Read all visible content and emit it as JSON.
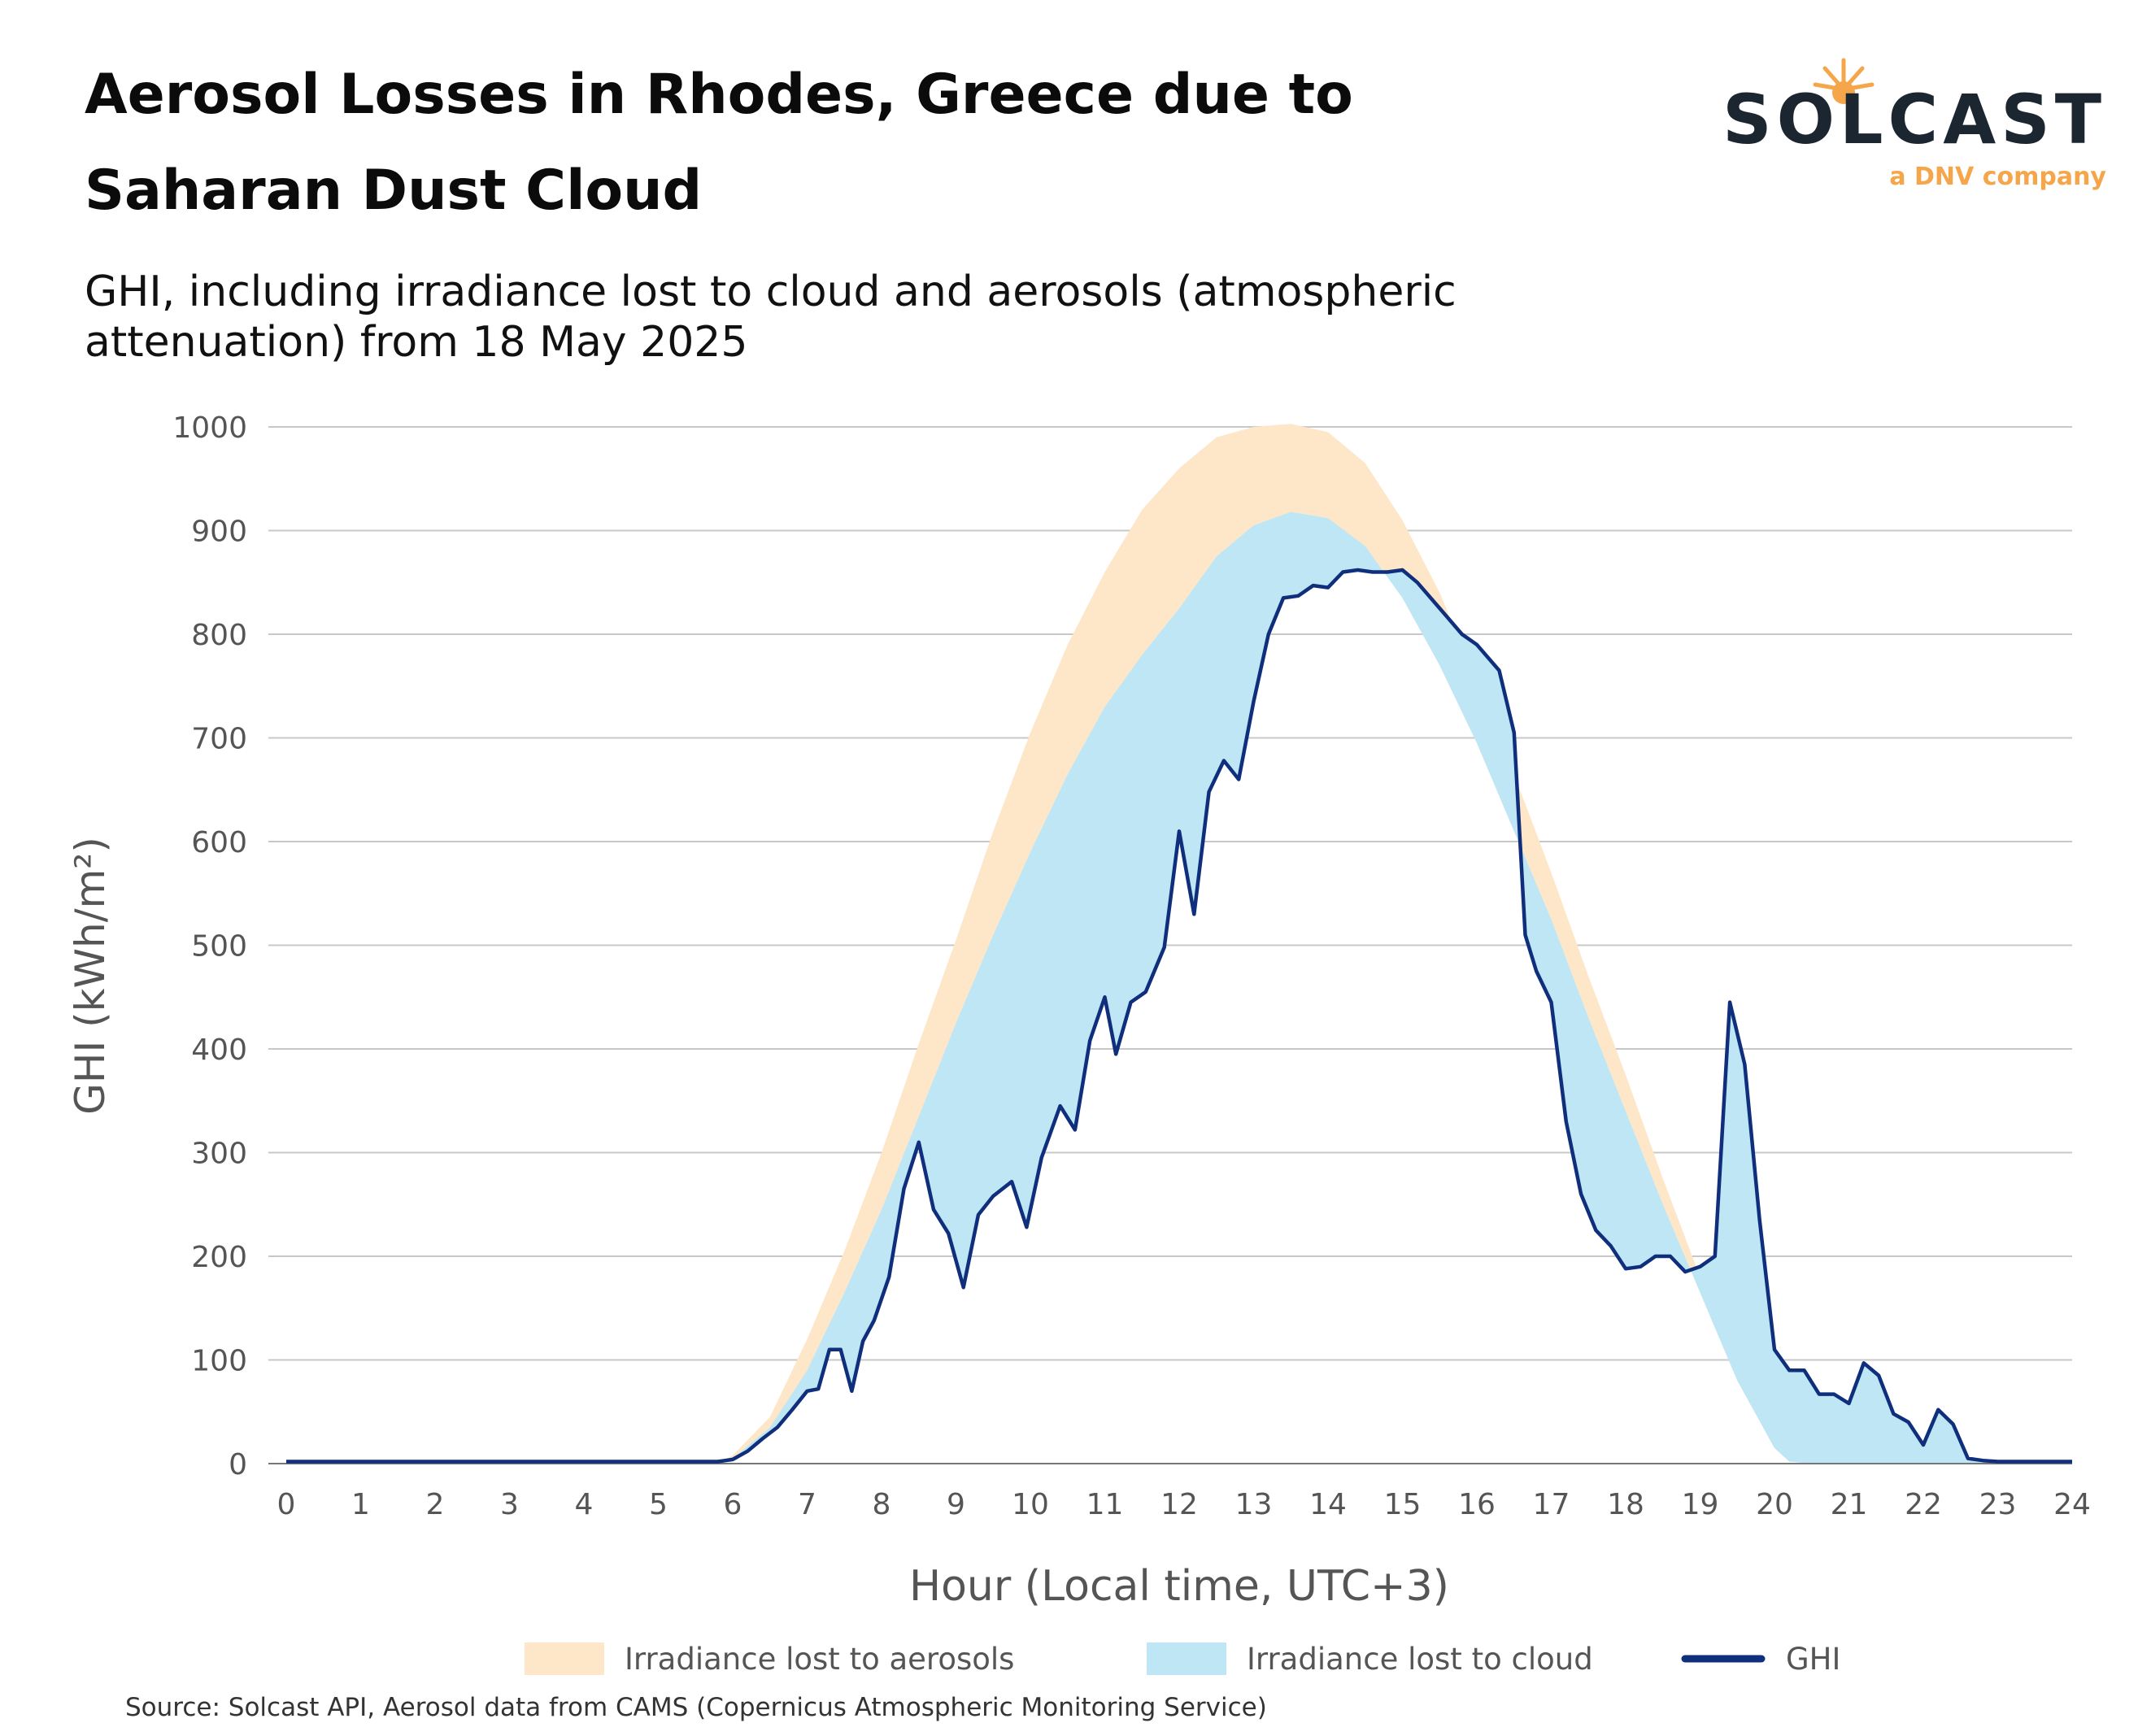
{
  "header": {
    "title": "Aerosol Losses in Rhodes, Greece due to Saharan Dust Cloud",
    "subtitle": "GHI, including irradiance lost to cloud and aerosols (atmospheric attenuation) from 18 May 2025"
  },
  "logo": {
    "wordmark": "SOLCAST",
    "tagline": "a DNV company",
    "sun_color": "#f5a54a",
    "text_color": "#1b2631"
  },
  "source": "Source: Solcast API, Aerosol data from CAMS (Copernicus Atmospheric Monitoring Service)",
  "colors": {
    "aerosol": "#fde7c8",
    "cloud": "#bfe6f5",
    "ghi": "#0f2f7d",
    "grid": "#c8c8c8",
    "text": "#555555"
  },
  "chart_data": {
    "type": "area",
    "xlabel": "Hour (Local time, UTC+3)",
    "ylabel": "GHI (kWh/m²)",
    "xlim": [
      0,
      24
    ],
    "ylim": [
      0,
      1000
    ],
    "x_ticks": [
      0,
      1,
      2,
      3,
      4,
      5,
      6,
      7,
      8,
      9,
      10,
      11,
      12,
      13,
      14,
      15,
      16,
      17,
      18,
      19,
      20,
      21,
      22,
      23,
      24
    ],
    "y_ticks": [
      0,
      100,
      200,
      300,
      400,
      500,
      600,
      700,
      800,
      900,
      1000
    ],
    "grid": "horizontal",
    "legend_position": "bottom",
    "legend": [
      "Irradiance lost to aerosols",
      "Irradiance lost to cloud",
      "GHI"
    ],
    "series": [
      {
        "name": "Irradiance lost to aerosols",
        "kind": "band-upper",
        "points": [
          [
            0,
            0
          ],
          [
            5.8,
            0
          ],
          [
            6,
            8
          ],
          [
            6.5,
            45
          ],
          [
            7,
            120
          ],
          [
            7.5,
            205
          ],
          [
            8,
            300
          ],
          [
            8.5,
            405
          ],
          [
            9,
            505
          ],
          [
            9.5,
            610
          ],
          [
            10,
            705
          ],
          [
            10.5,
            790
          ],
          [
            11,
            860
          ],
          [
            11.5,
            920
          ],
          [
            12,
            960
          ],
          [
            12.5,
            990
          ],
          [
            13,
            1000
          ],
          [
            13.5,
            1003
          ],
          [
            14,
            995
          ],
          [
            14.5,
            965
          ],
          [
            15,
            910
          ],
          [
            15.5,
            840
          ],
          [
            16,
            755
          ],
          [
            16.5,
            665
          ],
          [
            17,
            570
          ],
          [
            17.5,
            470
          ],
          [
            18,
            375
          ],
          [
            18.5,
            275
          ],
          [
            19,
            180
          ],
          [
            19.5,
            90
          ],
          [
            20,
            20
          ],
          [
            20.2,
            3
          ],
          [
            20.5,
            0
          ],
          [
            24,
            0
          ]
        ]
      },
      {
        "name": "Irradiance lost to cloud",
        "kind": "band-upper",
        "points": [
          [
            0,
            0
          ],
          [
            5.8,
            0
          ],
          [
            6,
            5
          ],
          [
            6.5,
            35
          ],
          [
            7,
            90
          ],
          [
            7.5,
            165
          ],
          [
            8,
            245
          ],
          [
            8.5,
            335
          ],
          [
            9,
            425
          ],
          [
            9.5,
            510
          ],
          [
            10,
            590
          ],
          [
            10.5,
            665
          ],
          [
            11,
            730
          ],
          [
            11.5,
            780
          ],
          [
            12,
            825
          ],
          [
            12.5,
            875
          ],
          [
            13,
            905
          ],
          [
            13.5,
            918
          ],
          [
            14,
            912
          ],
          [
            14.5,
            885
          ],
          [
            15,
            835
          ],
          [
            15.5,
            770
          ],
          [
            16,
            695
          ],
          [
            16.5,
            610
          ],
          [
            17,
            525
          ],
          [
            17.5,
            430
          ],
          [
            18,
            340
          ],
          [
            18.5,
            250
          ],
          [
            19,
            165
          ],
          [
            19.5,
            80
          ],
          [
            20,
            15
          ],
          [
            20.2,
            2
          ],
          [
            20.5,
            0
          ],
          [
            24,
            0
          ]
        ]
      },
      {
        "name": "GHI",
        "kind": "line",
        "points": [
          [
            0,
            2
          ],
          [
            5.8,
            2
          ],
          [
            6,
            4
          ],
          [
            6.2,
            12
          ],
          [
            6.4,
            24
          ],
          [
            6.6,
            35
          ],
          [
            6.8,
            52
          ],
          [
            7,
            70
          ],
          [
            7.15,
            72
          ],
          [
            7.3,
            110
          ],
          [
            7.45,
            110
          ],
          [
            7.6,
            70
          ],
          [
            7.75,
            118
          ],
          [
            7.9,
            138
          ],
          [
            8.1,
            180
          ],
          [
            8.3,
            265
          ],
          [
            8.5,
            310
          ],
          [
            8.7,
            245
          ],
          [
            8.9,
            222
          ],
          [
            9.1,
            170
          ],
          [
            9.3,
            240
          ],
          [
            9.5,
            258
          ],
          [
            9.75,
            272
          ],
          [
            9.95,
            228
          ],
          [
            10.15,
            295
          ],
          [
            10.4,
            345
          ],
          [
            10.6,
            322
          ],
          [
            10.8,
            408
          ],
          [
            11,
            450
          ],
          [
            11.15,
            395
          ],
          [
            11.35,
            445
          ],
          [
            11.55,
            455
          ],
          [
            11.8,
            498
          ],
          [
            12,
            610
          ],
          [
            12.2,
            530
          ],
          [
            12.4,
            648
          ],
          [
            12.6,
            678
          ],
          [
            12.8,
            660
          ],
          [
            13,
            735
          ],
          [
            13.2,
            800
          ],
          [
            13.4,
            835
          ],
          [
            13.6,
            837
          ],
          [
            13.8,
            847
          ],
          [
            14,
            845
          ],
          [
            14.2,
            860
          ],
          [
            14.4,
            862
          ],
          [
            14.6,
            860
          ],
          [
            14.8,
            860
          ],
          [
            15,
            862
          ],
          [
            15.2,
            850
          ],
          [
            15.5,
            825
          ],
          [
            15.8,
            800
          ],
          [
            16,
            790
          ],
          [
            16.3,
            765
          ],
          [
            16.5,
            705
          ],
          [
            16.65,
            510
          ],
          [
            16.8,
            475
          ],
          [
            17,
            445
          ],
          [
            17.2,
            330
          ],
          [
            17.4,
            260
          ],
          [
            17.6,
            225
          ],
          [
            17.8,
            210
          ],
          [
            18,
            188
          ],
          [
            18.2,
            190
          ],
          [
            18.4,
            200
          ],
          [
            18.6,
            200
          ],
          [
            18.8,
            185
          ],
          [
            19,
            190
          ],
          [
            19.2,
            200
          ],
          [
            19.4,
            445
          ],
          [
            19.6,
            385
          ],
          [
            19.8,
            235
          ],
          [
            20,
            110
          ],
          [
            20.2,
            90
          ],
          [
            20.4,
            90
          ],
          [
            20.6,
            67
          ],
          [
            20.8,
            67
          ],
          [
            21,
            58
          ],
          [
            21.2,
            97
          ],
          [
            21.4,
            85
          ],
          [
            21.6,
            48
          ],
          [
            21.8,
            40
          ],
          [
            22,
            18
          ],
          [
            22.2,
            52
          ],
          [
            22.4,
            38
          ],
          [
            22.6,
            5
          ],
          [
            22.8,
            3
          ],
          [
            23,
            2
          ],
          [
            24,
            2
          ]
        ]
      }
    ]
  }
}
